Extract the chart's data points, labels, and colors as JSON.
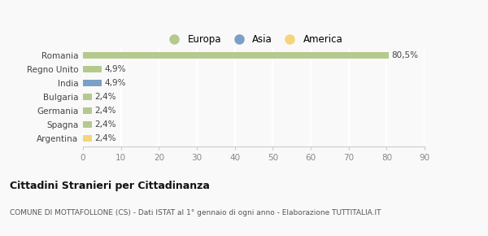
{
  "categories": [
    "Romania",
    "Regno Unito",
    "India",
    "Bulgaria",
    "Germania",
    "Spagna",
    "Argentina"
  ],
  "values": [
    80.5,
    4.9,
    4.9,
    2.4,
    2.4,
    2.4,
    2.4
  ],
  "labels": [
    "80,5%",
    "4,9%",
    "4,9%",
    "2,4%",
    "2,4%",
    "2,4%",
    "2,4%"
  ],
  "colors": [
    "#b5c98e",
    "#b5c98e",
    "#7b9fc7",
    "#b5c98e",
    "#b5c98e",
    "#b5c98e",
    "#f5d57a"
  ],
  "legend": [
    {
      "label": "Europa",
      "color": "#b5c98e"
    },
    {
      "label": "Asia",
      "color": "#7b9fc7"
    },
    {
      "label": "America",
      "color": "#f5d57a"
    }
  ],
  "xlim": [
    0,
    90
  ],
  "xticks": [
    0,
    10,
    20,
    30,
    40,
    50,
    60,
    70,
    80,
    90
  ],
  "title": "Cittadini Stranieri per Cittadinanza",
  "subtitle": "COMUNE DI MOTTAFOLLONE (CS) - Dati ISTAT al 1° gennaio di ogni anno - Elaborazione TUTTITALIA.IT",
  "bg_color": "#f9f9f9",
  "grid_color": "#ffffff",
  "bar_height": 0.5
}
